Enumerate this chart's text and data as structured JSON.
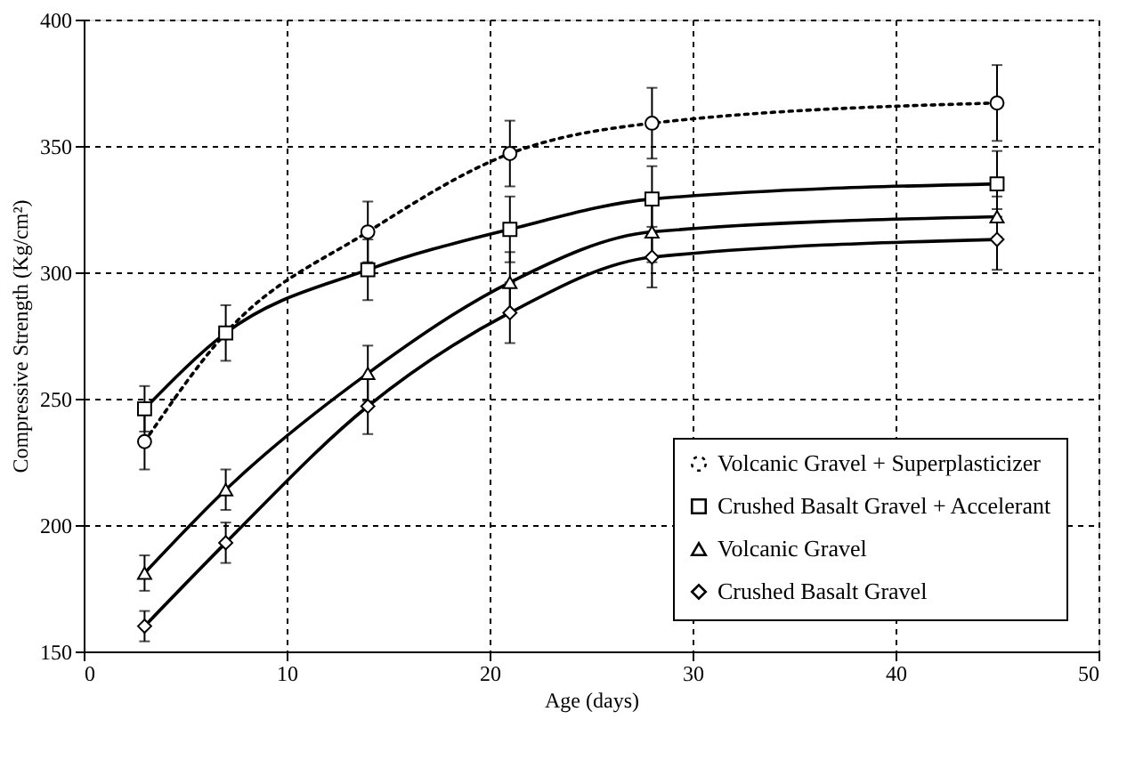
{
  "chart_data": {
    "type": "line",
    "xlabel": "Age (days)",
    "ylabel": "Compressive Strength (Kg/cm²)",
    "x": [
      3,
      7,
      14,
      21,
      28,
      45
    ],
    "series": [
      {
        "name": "Volcanic Gravel + Superplasticizer",
        "color": "#000000",
        "marker": "circle",
        "line_style": "dotted",
        "values": [
          233,
          276,
          316,
          347,
          359,
          367
        ],
        "errors": [
          11,
          null,
          12,
          13,
          14,
          15
        ]
      },
      {
        "name": "Crushed Basalt Gravel + Accelerant",
        "color": "#000000",
        "marker": "square",
        "line_style": "solid",
        "values": [
          246,
          276,
          301,
          317,
          329,
          335
        ],
        "errors": [
          9,
          11,
          12,
          13,
          13,
          13
        ]
      },
      {
        "name": "Volcanic Gravel",
        "color": "#000000",
        "marker": "triangle",
        "line_style": "solid",
        "values": [
          181,
          214,
          260,
          296,
          316,
          322
        ],
        "errors": [
          7,
          8,
          11,
          12,
          12,
          8
        ]
      },
      {
        "name": "Crushed Basalt Gravel",
        "color": "#000000",
        "marker": "diamond",
        "line_style": "solid",
        "values": [
          160,
          193,
          247,
          284,
          306,
          313
        ],
        "errors": [
          6,
          8,
          11,
          12,
          12,
          12
        ]
      }
    ],
    "xlim": [
      0,
      50
    ],
    "xticks": [
      0,
      10,
      20,
      30,
      40,
      50
    ],
    "ylim": [
      150,
      400
    ],
    "yticks": [
      150,
      200,
      250,
      300,
      350,
      400
    ],
    "grid": true,
    "legend": "bottom right"
  }
}
